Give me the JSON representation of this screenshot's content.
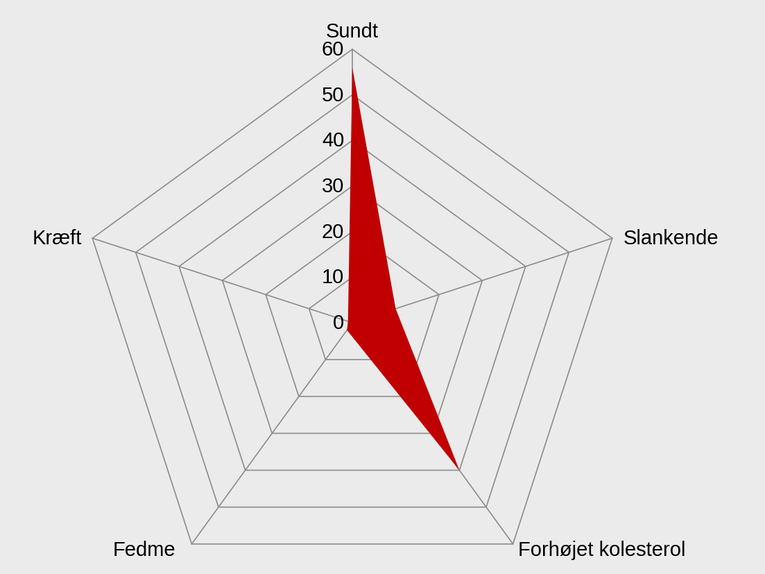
{
  "chart_data": {
    "type": "radar",
    "categories": [
      "Sundt",
      "Slankende",
      "Forhøjet kolesterol",
      "Fedme",
      "Kræft"
    ],
    "values": [
      56,
      10,
      40,
      2,
      1
    ],
    "color": "#c00000",
    "ylim": [
      0,
      60
    ],
    "yticks": [
      0,
      10,
      20,
      30,
      40,
      50,
      60
    ],
    "grid": true
  }
}
